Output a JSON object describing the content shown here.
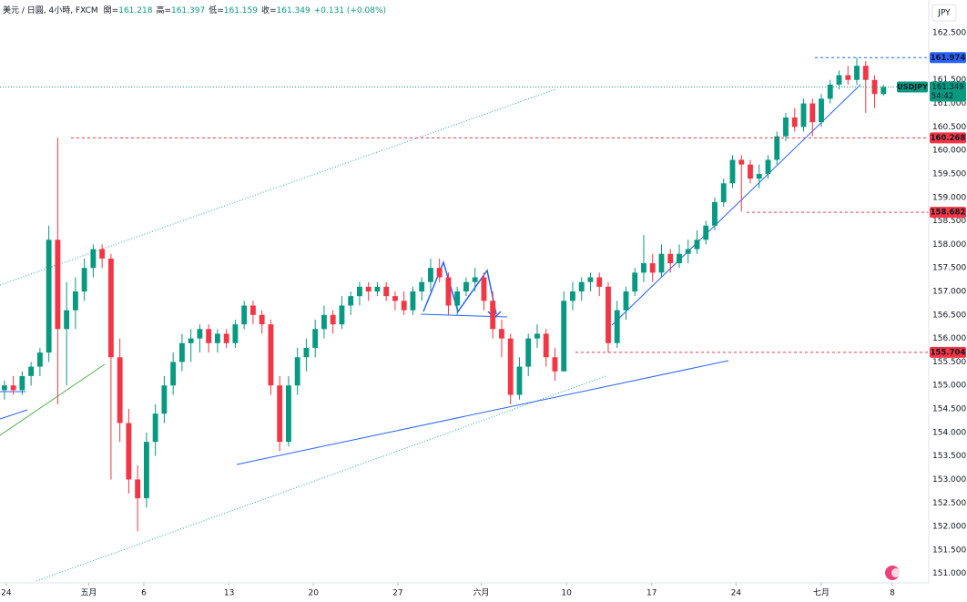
{
  "chart_data": {
    "type": "candlestick",
    "title": "美元 / 日圓, 4小時, FXCM",
    "ohlc": [
      {
        "name": "開=",
        "value": "161.218"
      },
      {
        "name": "高=",
        "value": "161.397"
      },
      {
        "name": "低=",
        "value": "161.159"
      },
      {
        "name": "收=",
        "value": "161.349"
      }
    ],
    "change": "+0.131 (+0.08%)",
    "currency": "JPY",
    "up_color": "#089981",
    "down_color": "#f23645",
    "xlim": [
      0,
      104.6
    ],
    "xticks": [
      {
        "value": 0.7,
        "label": "24"
      },
      {
        "value": 10,
        "label": "五月"
      },
      {
        "value": 16.2,
        "label": "6"
      },
      {
        "value": 25.8,
        "label": "13"
      },
      {
        "value": 35.3,
        "label": "20"
      },
      {
        "value": 44.8,
        "label": "27"
      },
      {
        "value": 54.2,
        "label": "六月"
      },
      {
        "value": 63.8,
        "label": "10"
      },
      {
        "value": 73.4,
        "label": "17"
      },
      {
        "value": 82.9,
        "label": "24"
      },
      {
        "value": 92.5,
        "label": "七月"
      },
      {
        "value": 100.5,
        "label": "8"
      }
    ],
    "ylim": [
      150.8,
      163.2
    ],
    "yticks": [
      {
        "value": 151,
        "label": "151.000"
      },
      {
        "value": 151.5,
        "label": "151.500"
      },
      {
        "value": 152,
        "label": "152.000"
      },
      {
        "value": 152.5,
        "label": "152.500"
      },
      {
        "value": 153,
        "label": "153.000"
      },
      {
        "value": 153.5,
        "label": "153.500"
      },
      {
        "value": 154,
        "label": "154.000"
      },
      {
        "value": 154.5,
        "label": "154.500"
      },
      {
        "value": 155,
        "label": "155.000"
      },
      {
        "value": 155.5,
        "label": "155.500"
      },
      {
        "value": 156,
        "label": "156.000"
      },
      {
        "value": 156.5,
        "label": "156.500"
      },
      {
        "value": 157,
        "label": "157.000"
      },
      {
        "value": 157.5,
        "label": "157.500"
      },
      {
        "value": 158,
        "label": "158.000"
      },
      {
        "value": 158.5,
        "label": "158.500"
      },
      {
        "value": 159,
        "label": "159.000"
      },
      {
        "value": 159.5,
        "label": "159.500"
      },
      {
        "value": 160,
        "label": "160.000"
      },
      {
        "value": 160.5,
        "label": "160.500"
      },
      {
        "value": 161,
        "label": "161.000"
      },
      {
        "value": 161.5,
        "label": "161.500"
      },
      {
        "value": 162,
        "label": "162.000"
      },
      {
        "value": 162.5,
        "label": "162.500"
      }
    ],
    "price_lines": [
      {
        "value": 161.974,
        "color": "#2962ff"
      },
      {
        "value": 160.268,
        "color": "#f23645"
      },
      {
        "value": 158.682,
        "color": "#f23645"
      },
      {
        "value": 155.704,
        "color": "#f23645"
      }
    ],
    "last": {
      "symbol": "USDJPY",
      "price": 161.349,
      "countdown": "54:42",
      "color": "#089981"
    },
    "candles": [
      [
        154.9,
        155.1,
        154.7,
        155.0
      ],
      [
        155.0,
        155.2,
        154.8,
        154.9
      ],
      [
        154.9,
        155.3,
        154.8,
        155.2
      ],
      [
        155.2,
        155.5,
        155.0,
        155.4
      ],
      [
        155.4,
        155.8,
        155.2,
        155.7
      ],
      [
        155.7,
        158.4,
        155.5,
        158.1
      ],
      [
        158.1,
        160.268,
        154.6,
        156.2
      ],
      [
        156.2,
        157.2,
        155.0,
        156.6
      ],
      [
        156.6,
        157.3,
        156.2,
        157.0
      ],
      [
        157.0,
        157.7,
        156.8,
        157.5
      ],
      [
        157.5,
        158.0,
        157.3,
        157.9
      ],
      [
        157.9,
        158.0,
        157.5,
        157.7
      ],
      [
        157.7,
        157.8,
        153.0,
        155.6
      ],
      [
        155.6,
        156.0,
        153.8,
        154.2
      ],
      [
        154.2,
        154.5,
        152.7,
        153.0
      ],
      [
        153.0,
        153.3,
        151.9,
        152.6
      ],
      [
        152.6,
        154.0,
        152.4,
        153.8
      ],
      [
        153.8,
        154.6,
        153.5,
        154.4
      ],
      [
        154.4,
        155.2,
        154.2,
        155.0
      ],
      [
        155.0,
        155.7,
        154.8,
        155.5
      ],
      [
        155.5,
        156.1,
        155.3,
        155.9
      ],
      [
        155.9,
        156.2,
        155.5,
        156.0
      ],
      [
        156.0,
        156.3,
        155.7,
        156.2
      ],
      [
        156.2,
        156.3,
        155.7,
        155.9
      ],
      [
        155.9,
        156.2,
        155.7,
        156.1
      ],
      [
        156.1,
        156.2,
        155.8,
        155.9
      ],
      [
        155.9,
        156.4,
        155.8,
        156.3
      ],
      [
        156.3,
        156.8,
        156.2,
        156.7
      ],
      [
        156.7,
        156.8,
        156.3,
        156.5
      ],
      [
        156.5,
        156.6,
        156.1,
        156.3
      ],
      [
        156.3,
        156.4,
        154.8,
        155.0
      ],
      [
        155.0,
        155.2,
        153.6,
        153.8
      ],
      [
        153.8,
        155.2,
        153.7,
        155.0
      ],
      [
        155.0,
        155.8,
        154.8,
        155.6
      ],
      [
        155.6,
        156.0,
        155.3,
        155.8
      ],
      [
        155.8,
        156.4,
        155.6,
        156.2
      ],
      [
        156.2,
        156.7,
        156.0,
        156.5
      ],
      [
        156.5,
        156.6,
        156.1,
        156.3
      ],
      [
        156.3,
        156.9,
        156.2,
        156.7
      ],
      [
        156.7,
        157.0,
        156.5,
        156.9
      ],
      [
        156.9,
        157.2,
        156.7,
        157.1
      ],
      [
        157.1,
        157.2,
        156.8,
        157.0
      ],
      [
        157.0,
        157.2,
        156.9,
        157.1
      ],
      [
        157.1,
        157.2,
        156.8,
        156.9
      ],
      [
        156.9,
        157.0,
        156.6,
        156.8
      ],
      [
        156.8,
        157.0,
        156.5,
        156.6
      ],
      [
        156.6,
        157.1,
        156.5,
        157.0
      ],
      [
        157.0,
        157.3,
        156.8,
        157.2
      ],
      [
        157.2,
        157.7,
        157.0,
        157.5
      ],
      [
        157.5,
        157.7,
        157.2,
        157.3
      ],
      [
        157.3,
        157.4,
        156.5,
        156.7
      ],
      [
        156.7,
        157.1,
        156.5,
        157.0
      ],
      [
        157.0,
        157.3,
        156.9,
        157.2
      ],
      [
        157.2,
        157.5,
        157.0,
        157.3
      ],
      [
        157.3,
        157.4,
        156.6,
        156.8
      ],
      [
        156.8,
        157.0,
        156.0,
        156.2
      ],
      [
        156.2,
        156.4,
        155.6,
        156.0
      ],
      [
        156.0,
        156.1,
        154.6,
        154.8
      ],
      [
        154.8,
        155.6,
        154.7,
        155.4
      ],
      [
        155.4,
        156.1,
        155.2,
        156.0
      ],
      [
        156.0,
        156.3,
        155.8,
        156.1
      ],
      [
        156.1,
        156.2,
        155.4,
        155.6
      ],
      [
        155.6,
        155.8,
        155.1,
        155.3
      ],
      [
        155.3,
        157.0,
        155.3,
        156.8
      ],
      [
        156.8,
        157.2,
        156.6,
        157.0
      ],
      [
        157.0,
        157.3,
        156.8,
        157.2
      ],
      [
        157.2,
        157.4,
        157.0,
        157.3
      ],
      [
        157.3,
        157.4,
        156.9,
        157.1
      ],
      [
        157.1,
        157.2,
        155.7,
        155.9
      ],
      [
        155.9,
        156.8,
        155.8,
        156.6
      ],
      [
        156.6,
        157.1,
        156.4,
        157.0
      ],
      [
        157.0,
        157.5,
        156.9,
        157.4
      ],
      [
        157.4,
        158.2,
        157.2,
        157.6
      ],
      [
        157.6,
        157.8,
        157.2,
        157.4
      ],
      [
        157.4,
        158.0,
        157.3,
        157.8
      ],
      [
        157.8,
        157.9,
        157.4,
        157.6
      ],
      [
        157.6,
        158.0,
        157.5,
        157.8
      ],
      [
        157.8,
        158.1,
        157.6,
        157.9
      ],
      [
        157.9,
        158.3,
        157.8,
        158.1
      ],
      [
        158.1,
        158.5,
        158.0,
        158.4
      ],
      [
        158.4,
        159.0,
        158.3,
        158.9
      ],
      [
        158.9,
        159.4,
        158.8,
        159.3
      ],
      [
        159.3,
        159.9,
        159.2,
        159.8
      ],
      [
        159.8,
        159.9,
        158.7,
        159.7
      ],
      [
        159.7,
        159.8,
        159.3,
        159.4
      ],
      [
        159.4,
        159.7,
        159.2,
        159.5
      ],
      [
        159.5,
        159.9,
        159.4,
        159.8
      ],
      [
        159.8,
        160.4,
        159.7,
        160.3
      ],
      [
        160.3,
        160.8,
        160.2,
        160.7
      ],
      [
        160.7,
        160.9,
        160.4,
        160.5
      ],
      [
        160.5,
        161.1,
        160.4,
        161.0
      ],
      [
        161.0,
        161.1,
        160.3,
        160.6
      ],
      [
        160.6,
        161.2,
        160.5,
        161.1
      ],
      [
        161.1,
        161.5,
        161.0,
        161.4
      ],
      [
        161.4,
        161.7,
        161.3,
        161.6
      ],
      [
        161.6,
        161.8,
        161.4,
        161.5
      ],
      [
        161.5,
        161.974,
        161.4,
        161.8
      ],
      [
        161.8,
        161.9,
        160.8,
        161.5
      ],
      [
        161.5,
        161.6,
        160.9,
        161.2
      ],
      [
        161.2,
        161.397,
        161.159,
        161.349
      ]
    ]
  }
}
